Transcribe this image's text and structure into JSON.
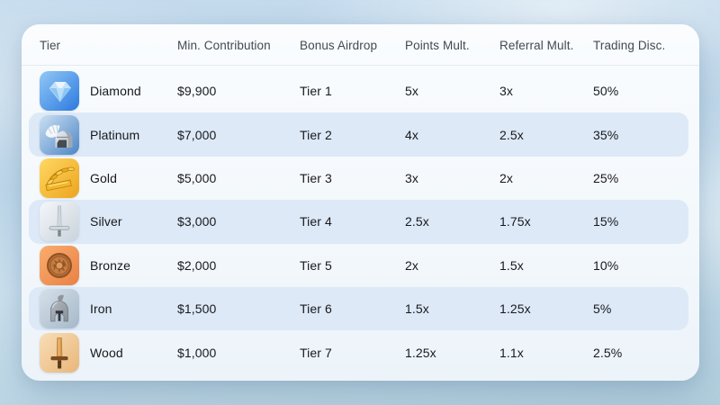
{
  "card": {
    "background": "#f7fafd",
    "row_highlight_color": "#dde9f7"
  },
  "table": {
    "columns": [
      {
        "id": "tier",
        "label": "Tier"
      },
      {
        "id": "min_contribution",
        "label": "Min. Contribution"
      },
      {
        "id": "bonus_airdrop",
        "label": "Bonus Airdrop"
      },
      {
        "id": "points_mult",
        "label": "Points Mult."
      },
      {
        "id": "referral_mult",
        "label": "Referral Mult."
      },
      {
        "id": "trading_disc",
        "label": "Trading Disc."
      }
    ],
    "rows": [
      {
        "tier": "Diamond",
        "icon": "diamond-icon",
        "min_contribution": "$9,900",
        "bonus_airdrop": "Tier 1",
        "points_mult": "5x",
        "referral_mult": "3x",
        "trading_disc": "50%",
        "highlighted": false
      },
      {
        "tier": "Platinum",
        "icon": "platinum-helmet-icon",
        "min_contribution": "$7,000",
        "bonus_airdrop": "Tier 2",
        "points_mult": "4x",
        "referral_mult": "2.5x",
        "trading_disc": "35%",
        "highlighted": true
      },
      {
        "tier": "Gold",
        "icon": "gold-laurel-icon",
        "min_contribution": "$5,000",
        "bonus_airdrop": "Tier 3",
        "points_mult": "3x",
        "referral_mult": "2x",
        "trading_disc": "25%",
        "highlighted": false
      },
      {
        "tier": "Silver",
        "icon": "silver-sword-icon",
        "min_contribution": "$3,000",
        "bonus_airdrop": "Tier 4",
        "points_mult": "2.5x",
        "referral_mult": "1.75x",
        "trading_disc": "15%",
        "highlighted": true
      },
      {
        "tier": "Bronze",
        "icon": "bronze-shield-icon",
        "min_contribution": "$2,000",
        "bonus_airdrop": "Tier 5",
        "points_mult": "2x",
        "referral_mult": "1.5x",
        "trading_disc": "10%",
        "highlighted": false
      },
      {
        "tier": "Iron",
        "icon": "iron-helmet-icon",
        "min_contribution": "$1,500",
        "bonus_airdrop": "Tier 6",
        "points_mult": "1.5x",
        "referral_mult": "1.25x",
        "trading_disc": "5%",
        "highlighted": true
      },
      {
        "tier": "Wood",
        "icon": "wood-sword-icon",
        "min_contribution": "$1,000",
        "bonus_airdrop": "Tier 7",
        "points_mult": "1.25x",
        "referral_mult": "1.1x",
        "trading_disc": "2.5%",
        "highlighted": false
      }
    ]
  }
}
